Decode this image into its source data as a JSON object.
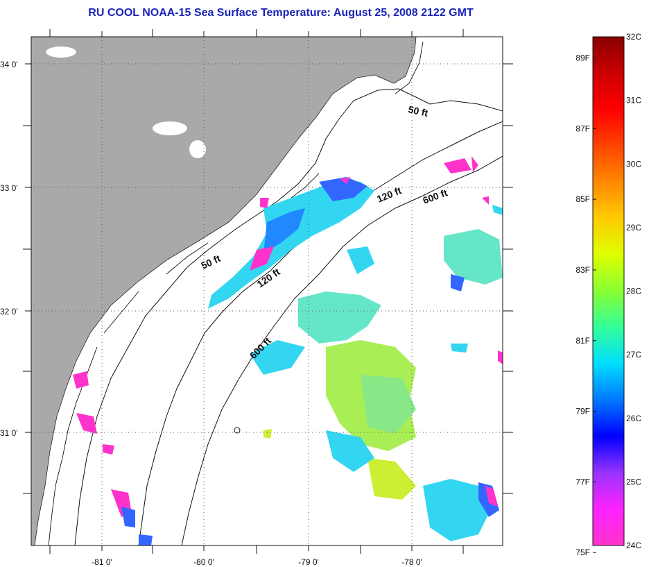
{
  "title": "RU COOL  NOAA-15  Sea Surface Temperature:  August 25, 2008 2122 GMT",
  "map": {
    "lat_labels": [
      "34 0'",
      "33 0'",
      "32 0'",
      "31 0'"
    ],
    "lon_labels": [
      "-81 0'",
      "-80 0'",
      "-79 0'",
      "-78 0'"
    ],
    "isobath_labels": [
      {
        "text": "50 ft"
      },
      {
        "text": "120 ft"
      },
      {
        "text": "600 ft"
      },
      {
        "text": "50 ft"
      },
      {
        "text": "120 ft"
      },
      {
        "text": "600 ft"
      }
    ],
    "colors": {
      "land": "#a9a9a9",
      "ocean": "#ffffff",
      "grid": "#555555"
    }
  },
  "colorbar": {
    "fahrenheit_labels": [
      "89F",
      "87F",
      "85F",
      "83F",
      "81F",
      "79F",
      "77F",
      "75F"
    ],
    "celsius_labels": [
      "32C",
      "31C",
      "30C",
      "29C",
      "28C",
      "27C",
      "26C",
      "25C",
      "24C"
    ],
    "range_c": [
      24,
      32
    ],
    "stops": [
      "#ff33cc",
      "#ff22ff",
      "#9933ff",
      "#0000ff",
      "#0077ff",
      "#00ddff",
      "#33ff99",
      "#88ff33",
      "#ddff00",
      "#ffcc00",
      "#ff8800",
      "#ff4400",
      "#ff0000",
      "#cc0000",
      "#880000"
    ]
  }
}
